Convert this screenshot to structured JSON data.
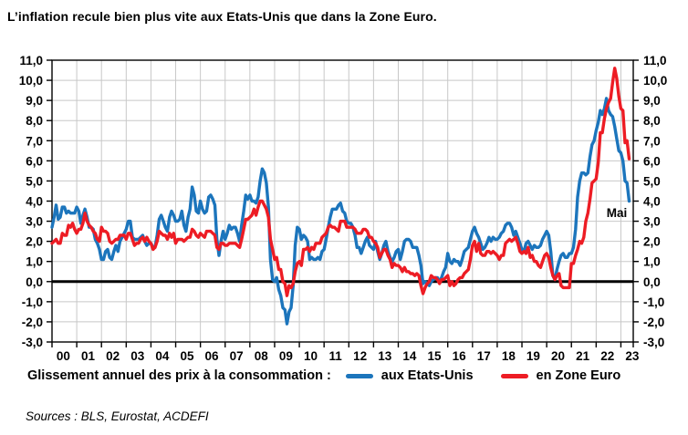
{
  "title": "L’inflation recule bien plus vite aux Etats-Unis que dans la Zone Euro.",
  "annotation": "Mai",
  "legend": {
    "prefix": "Glissement annuel des prix à la consommation :",
    "series1": "aux Etats-Unis",
    "series2": "en Zone Euro"
  },
  "sources": "Sources : BLS, Eurostat, ACDEFI",
  "colors": {
    "us": "#1C75BC",
    "euro": "#ED1C24",
    "grid": "#C8C8C8",
    "axis": "#000000",
    "zero_line": "#000000"
  },
  "chart_data": {
    "type": "line",
    "title": "L’inflation recule bien plus vite aux Etats-Unis que dans la Zone Euro.",
    "x_unit": "month",
    "x_start": "2000-01",
    "x_end": "2023-05",
    "ylim": [
      -3,
      11
    ],
    "grid": true,
    "legend_position": "bottom",
    "x_tick_labels": [
      "00",
      "01",
      "02",
      "03",
      "04",
      "05",
      "06",
      "07",
      "08",
      "09",
      "10",
      "11",
      "12",
      "13",
      "14",
      "15",
      "16",
      "17",
      "18",
      "19",
      "20",
      "21",
      "22",
      "23"
    ],
    "y_tick_labels": [
      "-3,0",
      "-2,0",
      "-1,0",
      "0,0",
      "1,0",
      "2,0",
      "3,0",
      "4,0",
      "5,0",
      "6,0",
      "7,0",
      "8,0",
      "9,0",
      "10,0",
      "11,0"
    ],
    "series": [
      {
        "name": "aux Etats-Unis",
        "color": "#1C75BC",
        "values": [
          2.7,
          3.2,
          3.8,
          3.1,
          3.2,
          3.7,
          3.7,
          3.4,
          3.5,
          3.4,
          3.4,
          3.4,
          3.7,
          3.5,
          2.9,
          3.3,
          3.6,
          3.2,
          2.7,
          2.7,
          2.6,
          2.1,
          1.9,
          1.6,
          1.1,
          1.1,
          1.5,
          1.6,
          1.2,
          1.1,
          1.5,
          1.8,
          1.5,
          2.0,
          2.2,
          2.4,
          2.6,
          3.0,
          3.0,
          2.2,
          2.1,
          2.1,
          2.1,
          2.2,
          2.3,
          2.0,
          1.8,
          1.9,
          1.9,
          1.7,
          1.7,
          2.3,
          3.1,
          3.3,
          3.0,
          2.7,
          2.5,
          3.2,
          3.5,
          3.3,
          3.0,
          3.0,
          3.1,
          3.5,
          2.8,
          2.5,
          3.2,
          3.6,
          4.7,
          4.3,
          3.5,
          3.4,
          4.0,
          3.6,
          3.4,
          3.5,
          4.2,
          4.3,
          4.1,
          3.8,
          2.1,
          1.3,
          2.0,
          2.5,
          2.1,
          2.4,
          2.8,
          2.6,
          2.7,
          2.7,
          2.4,
          2.0,
          2.8,
          3.5,
          4.3,
          4.1,
          4.3,
          4.0,
          4.0,
          3.9,
          4.2,
          5.0,
          5.6,
          5.4,
          4.9,
          3.7,
          1.1,
          0.1,
          0.0,
          0.2,
          -0.4,
          -0.7,
          -1.3,
          -1.4,
          -2.1,
          -1.5,
          -1.3,
          -0.2,
          1.8,
          2.7,
          2.6,
          2.1,
          2.3,
          2.2,
          2.0,
          1.1,
          1.2,
          1.1,
          1.1,
          1.2,
          1.1,
          1.5,
          1.6,
          2.1,
          2.7,
          3.2,
          3.6,
          3.6,
          3.6,
          3.8,
          3.9,
          3.5,
          3.4,
          3.0,
          2.9,
          2.9,
          2.7,
          2.3,
          1.7,
          1.7,
          1.4,
          1.7,
          2.0,
          2.2,
          1.8,
          1.7,
          1.6,
          2.0,
          1.5,
          1.1,
          1.4,
          1.8,
          2.0,
          1.5,
          1.2,
          1.0,
          1.2,
          1.5,
          1.6,
          1.1,
          1.5,
          2.0,
          2.1,
          2.1,
          2.0,
          1.7,
          1.7,
          1.7,
          1.3,
          0.8,
          -0.1,
          0.0,
          -0.1,
          -0.2,
          0.0,
          0.1,
          0.2,
          0.2,
          0.0,
          0.2,
          0.5,
          0.7,
          1.4,
          1.0,
          0.9,
          1.1,
          1.0,
          1.0,
          0.8,
          1.1,
          1.5,
          1.6,
          1.7,
          2.1,
          2.5,
          2.7,
          2.4,
          2.2,
          1.9,
          1.6,
          1.7,
          1.9,
          2.2,
          2.0,
          2.2,
          2.1,
          2.1,
          2.2,
          2.4,
          2.5,
          2.8,
          2.9,
          2.9,
          2.7,
          2.3,
          2.5,
          2.2,
          1.9,
          1.6,
          1.5,
          1.9,
          2.0,
          1.8,
          1.6,
          1.8,
          1.7,
          1.7,
          1.8,
          2.1,
          2.3,
          2.5,
          2.3,
          1.5,
          0.3,
          0.1,
          0.6,
          1.0,
          1.3,
          1.4,
          1.2,
          1.2,
          1.4,
          1.4,
          1.7,
          2.6,
          4.2,
          5.0,
          5.4,
          5.4,
          5.3,
          5.4,
          6.2,
          6.8,
          7.0,
          7.5,
          7.9,
          8.5,
          8.3,
          8.6,
          9.1,
          8.5,
          8.3,
          8.2,
          7.7,
          7.1,
          6.5,
          6.4,
          6.0,
          5.0,
          4.9,
          4.0
        ]
      },
      {
        "name": "en Zone Euro",
        "color": "#ED1C24",
        "values": [
          1.9,
          2.0,
          2.1,
          1.9,
          1.9,
          2.4,
          2.3,
          2.3,
          2.8,
          2.7,
          2.9,
          2.6,
          2.4,
          2.6,
          2.6,
          2.9,
          3.4,
          3.0,
          2.8,
          2.7,
          2.5,
          2.4,
          2.1,
          2.0,
          2.7,
          2.5,
          2.5,
          2.4,
          2.0,
          1.9,
          2.0,
          2.1,
          2.1,
          2.3,
          2.3,
          2.3,
          2.1,
          2.4,
          2.4,
          2.1,
          1.8,
          1.9,
          1.9,
          2.1,
          2.2,
          2.0,
          2.2,
          2.0,
          1.9,
          1.6,
          1.7,
          2.0,
          2.5,
          2.4,
          2.3,
          2.3,
          2.1,
          2.4,
          2.2,
          2.4,
          1.9,
          2.1,
          2.1,
          2.1,
          2.0,
          2.1,
          2.2,
          2.2,
          2.6,
          2.5,
          2.3,
          2.2,
          2.4,
          2.3,
          2.2,
          2.5,
          2.5,
          2.5,
          2.4,
          2.3,
          1.7,
          1.6,
          1.9,
          1.9,
          1.8,
          1.8,
          1.9,
          1.9,
          1.9,
          1.9,
          1.8,
          1.7,
          2.1,
          2.6,
          3.1,
          3.1,
          3.2,
          3.3,
          3.6,
          3.3,
          3.7,
          4.0,
          4.0,
          3.8,
          3.6,
          3.2,
          2.1,
          1.6,
          1.1,
          1.2,
          0.6,
          0.6,
          0.0,
          -0.1,
          -0.7,
          -0.2,
          -0.3,
          -0.1,
          0.5,
          0.9,
          1.0,
          0.8,
          1.6,
          1.6,
          1.7,
          1.5,
          1.7,
          1.6,
          1.9,
          1.9,
          1.9,
          2.2,
          2.3,
          2.4,
          2.7,
          2.8,
          2.7,
          2.7,
          2.6,
          2.5,
          3.0,
          3.0,
          3.0,
          2.7,
          2.7,
          2.7,
          2.7,
          2.6,
          2.4,
          2.4,
          2.4,
          2.6,
          2.6,
          2.5,
          2.2,
          2.2,
          2.0,
          1.9,
          1.7,
          1.2,
          1.4,
          1.6,
          1.6,
          1.3,
          1.1,
          0.7,
          0.9,
          0.8,
          0.8,
          0.7,
          0.5,
          0.7,
          0.5,
          0.5,
          0.4,
          0.4,
          0.3,
          0.4,
          0.3,
          -0.2,
          -0.6,
          -0.3,
          -0.1,
          0.0,
          0.3,
          0.2,
          0.2,
          0.1,
          -0.1,
          0.1,
          0.1,
          0.2,
          0.3,
          -0.2,
          0.0,
          -0.2,
          -0.1,
          0.1,
          0.2,
          0.2,
          0.4,
          0.5,
          0.6,
          1.1,
          1.8,
          2.0,
          1.5,
          1.9,
          1.4,
          1.3,
          1.3,
          1.5,
          1.5,
          1.4,
          1.5,
          1.4,
          1.3,
          1.1,
          1.3,
          1.3,
          1.9,
          2.0,
          2.1,
          2.0,
          2.1,
          2.2,
          1.9,
          1.5,
          1.4,
          1.5,
          1.4,
          1.7,
          1.2,
          1.3,
          1.0,
          1.0,
          0.8,
          0.7,
          1.0,
          1.3,
          1.4,
          1.2,
          0.7,
          0.3,
          0.1,
          0.3,
          0.4,
          -0.2,
          -0.3,
          -0.3,
          -0.3,
          -0.3,
          0.9,
          0.9,
          1.3,
          1.6,
          2.0,
          1.9,
          2.2,
          3.0,
          3.4,
          4.1,
          4.9,
          5.0,
          5.1,
          5.9,
          7.4,
          7.4,
          8.1,
          8.6,
          8.9,
          9.1,
          9.9,
          10.6,
          10.1,
          9.2,
          8.6,
          8.5,
          6.9,
          7.0,
          6.1
        ]
      }
    ]
  }
}
